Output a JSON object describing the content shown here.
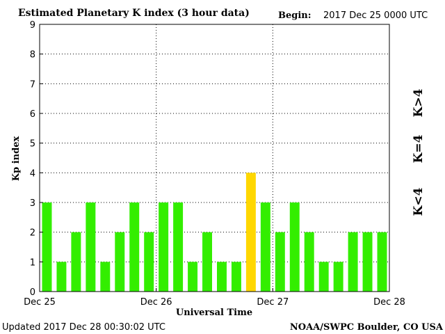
{
  "title": "Estimated Planetary K index (3 hour data)",
  "begin": {
    "label": "Begin:",
    "value": "2017 Dec 25 0000 UTC"
  },
  "footer": {
    "updated": "Updated 2017 Dec 28 00:30:02 UTC",
    "source": "NOAA/SWPC Boulder, CO USA"
  },
  "legend": [
    {
      "label": "K>4",
      "color": "#ff2a00"
    },
    {
      "label": "K=4",
      "color": "#ffd700"
    },
    {
      "label": "K<4",
      "color": "#33ee00"
    }
  ],
  "chart_data": {
    "type": "bar",
    "title": "Estimated Planetary K index (3 hour data)",
    "xlabel": "Universal Time",
    "ylabel": "Kp index",
    "ylim": [
      0,
      9
    ],
    "yticks": [
      0,
      1,
      2,
      3,
      4,
      5,
      6,
      7,
      8,
      9
    ],
    "x_tick_labels": [
      "Dec 25",
      "Dec 26",
      "Dec 27",
      "Dec 28"
    ],
    "bins_per_day": 8,
    "grid": true,
    "values": [
      3,
      1,
      2,
      3,
      1,
      2,
      3,
      2,
      3,
      3,
      1,
      2,
      1,
      1,
      4,
      3,
      2,
      3,
      2,
      1,
      1,
      2,
      2,
      2
    ],
    "colors": {
      "below": "#33ee00",
      "equal": "#ffd700",
      "above": "#ff2a00"
    }
  }
}
